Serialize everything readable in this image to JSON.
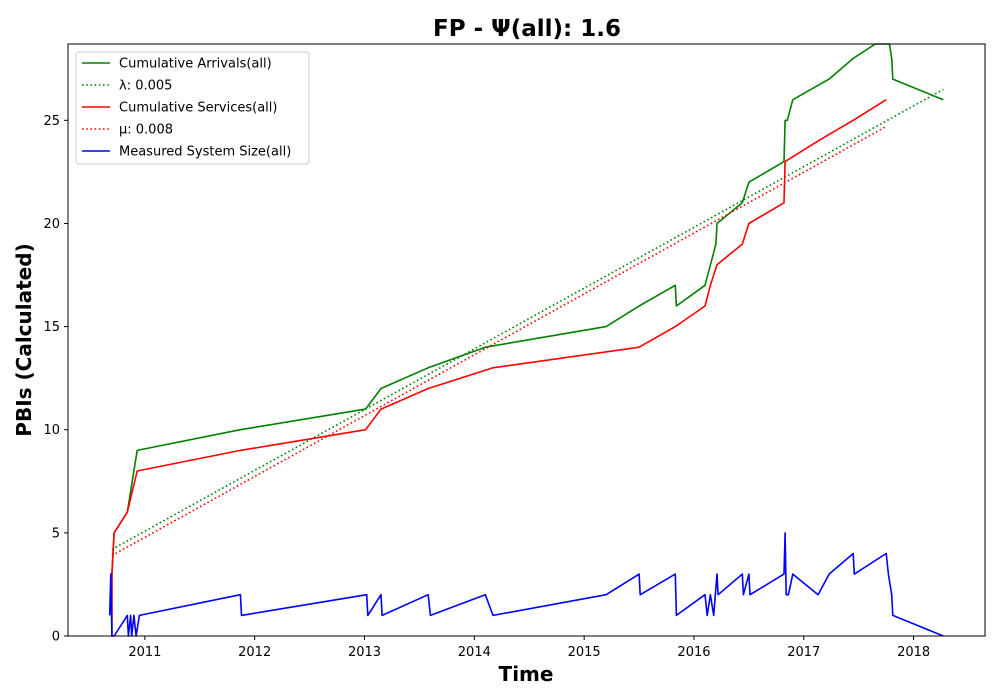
{
  "chart_data": {
    "type": "line",
    "title": "FP -  Ψ(all): 1.6",
    "xlabel": "Time",
    "ylabel": "PBIs (Calculated)",
    "xlim": [
      2010.3,
      2018.65
    ],
    "ylim": [
      0,
      28.7
    ],
    "xticks": [
      "2011",
      "2012",
      "2013",
      "2014",
      "2015",
      "2016",
      "2017",
      "2018"
    ],
    "yticks": [
      "0",
      "5",
      "10",
      "15",
      "20",
      "25"
    ],
    "legend_position": "upper-left",
    "grid": false,
    "series": [
      {
        "name": "Cumulative Arrivals(all)",
        "color": "#008000",
        "style": "solid",
        "points": [
          [
            2010.7,
            0
          ],
          [
            2010.7,
            3
          ],
          [
            2010.72,
            5
          ],
          [
            2010.84,
            6
          ],
          [
            2010.93,
            9
          ],
          [
            2011.87,
            10
          ],
          [
            2013.01,
            11
          ],
          [
            2013.15,
            12
          ],
          [
            2013.58,
            13
          ],
          [
            2014.1,
            14
          ],
          [
            2015.2,
            15
          ],
          [
            2015.5,
            16
          ],
          [
            2015.83,
            17
          ],
          [
            2015.84,
            16
          ],
          [
            2016.1,
            17
          ],
          [
            2016.2,
            19
          ],
          [
            2016.21,
            20
          ],
          [
            2016.44,
            21
          ],
          [
            2016.5,
            22
          ],
          [
            2016.82,
            23
          ],
          [
            2016.83,
            25
          ],
          [
            2016.85,
            25
          ],
          [
            2016.9,
            26
          ],
          [
            2017.23,
            27
          ],
          [
            2017.45,
            28
          ],
          [
            2017.65,
            28.7
          ],
          [
            2017.78,
            28.7
          ],
          [
            2017.8,
            28
          ],
          [
            2017.81,
            27
          ],
          [
            2018.27,
            26
          ]
        ]
      },
      {
        "name": "λ: 0.005",
        "color": "#008000",
        "style": "dotted",
        "points": [
          [
            2010.7,
            4.2
          ],
          [
            2018.27,
            26.5
          ]
        ]
      },
      {
        "name": "Cumulative Services(all)",
        "color": "#ff0000",
        "style": "solid",
        "points": [
          [
            2010.7,
            0
          ],
          [
            2010.7,
            3
          ],
          [
            2010.72,
            5
          ],
          [
            2010.84,
            6
          ],
          [
            2010.93,
            8
          ],
          [
            2011.87,
            9
          ],
          [
            2013.01,
            10
          ],
          [
            2013.15,
            11
          ],
          [
            2013.58,
            12
          ],
          [
            2014.17,
            13
          ],
          [
            2015.5,
            14
          ],
          [
            2015.83,
            15
          ],
          [
            2016.1,
            16
          ],
          [
            2016.15,
            17
          ],
          [
            2016.21,
            18
          ],
          [
            2016.44,
            19
          ],
          [
            2016.5,
            20
          ],
          [
            2016.82,
            21
          ],
          [
            2016.83,
            23
          ],
          [
            2017.13,
            24
          ],
          [
            2017.45,
            25
          ],
          [
            2017.75,
            26
          ]
        ]
      },
      {
        "name": "μ: 0.008",
        "color": "#ff0000",
        "style": "dotted",
        "points": [
          [
            2010.7,
            3.9
          ],
          [
            2017.75,
            24.7
          ]
        ]
      },
      {
        "name": "Measured System Size(all)",
        "color": "#0000ff",
        "style": "solid",
        "points": [
          [
            2010.68,
            1
          ],
          [
            2010.69,
            3
          ],
          [
            2010.7,
            0
          ],
          [
            2010.72,
            0
          ],
          [
            2010.84,
            1
          ],
          [
            2010.85,
            0
          ],
          [
            2010.87,
            1
          ],
          [
            2010.88,
            0
          ],
          [
            2010.9,
            1
          ],
          [
            2010.92,
            0
          ],
          [
            2010.95,
            1
          ],
          [
            2011.87,
            2
          ],
          [
            2011.88,
            1
          ],
          [
            2013.02,
            2
          ],
          [
            2013.03,
            1
          ],
          [
            2013.15,
            2
          ],
          [
            2013.16,
            1
          ],
          [
            2013.58,
            2
          ],
          [
            2013.6,
            1
          ],
          [
            2014.1,
            2
          ],
          [
            2014.17,
            1
          ],
          [
            2015.2,
            2
          ],
          [
            2015.5,
            3
          ],
          [
            2015.51,
            2
          ],
          [
            2015.83,
            3
          ],
          [
            2015.84,
            1
          ],
          [
            2016.1,
            2
          ],
          [
            2016.12,
            1
          ],
          [
            2016.15,
            2
          ],
          [
            2016.18,
            1
          ],
          [
            2016.21,
            3
          ],
          [
            2016.22,
            2
          ],
          [
            2016.44,
            3
          ],
          [
            2016.45,
            2
          ],
          [
            2016.5,
            3
          ],
          [
            2016.51,
            2
          ],
          [
            2016.82,
            3
          ],
          [
            2016.83,
            5
          ],
          [
            2016.84,
            2
          ],
          [
            2016.86,
            2
          ],
          [
            2016.9,
            3
          ],
          [
            2017.13,
            2
          ],
          [
            2017.23,
            3
          ],
          [
            2017.45,
            4
          ],
          [
            2017.46,
            3
          ],
          [
            2017.75,
            4
          ],
          [
            2017.77,
            3
          ],
          [
            2017.8,
            2
          ],
          [
            2017.81,
            1
          ],
          [
            2018.27,
            0
          ]
        ]
      }
    ]
  }
}
